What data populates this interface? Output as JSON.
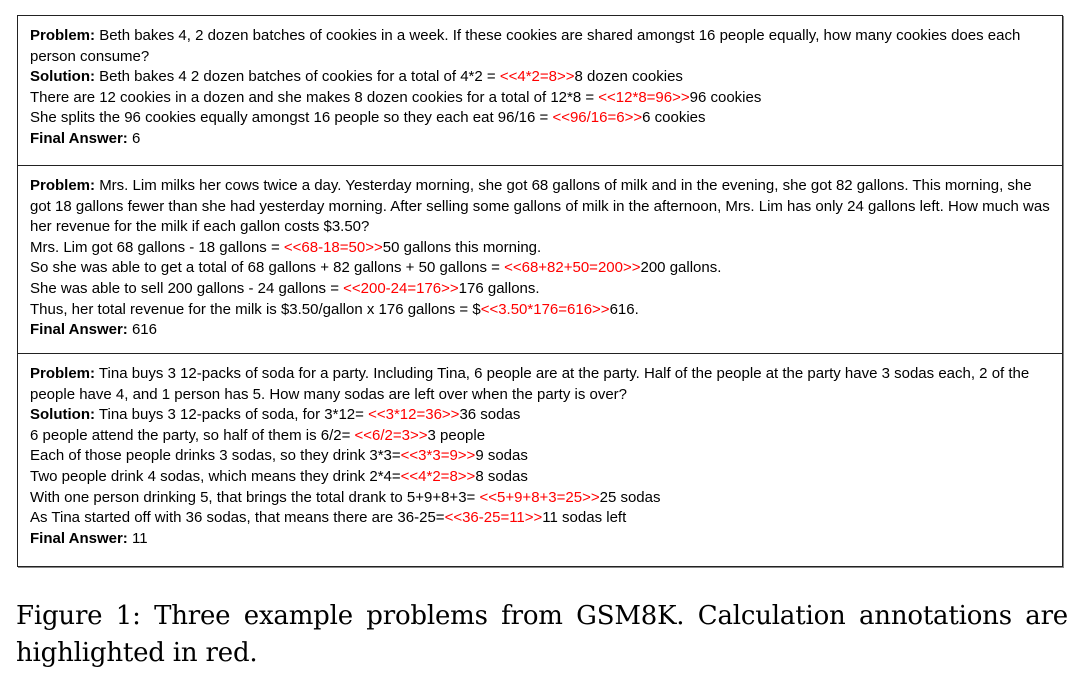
{
  "figure": {
    "examples": [
      {
        "problem_label": "Problem:",
        "problem_text": "Beth bakes 4, 2 dozen batches of cookies in a week.  If these cookies are shared amongst 16 people equally, how many cookies does each person consume?",
        "solution_label": "Solution:",
        "steps": [
          {
            "before": "Beth bakes 4 2 dozen batches of cookies for a total of 4*2 = ",
            "calc": "<<4*2=8>>",
            "after": "8 dozen cookies"
          },
          {
            "before": "There are 12 cookies in a dozen and she makes 8 dozen cookies for a total of 12*8 = ",
            "calc": "<<12*8=96>>",
            "after": "96 cookies"
          },
          {
            "before": "She splits the 96 cookies equally amongst 16 people so they each eat 96/16 = ",
            "calc": "<<96/16=6>>",
            "after": "6 cookies"
          }
        ],
        "final_label": "Final Answer:",
        "final_value": "6"
      },
      {
        "problem_label": "Problem:",
        "problem_text": "Mrs. Lim milks her cows twice a day. Yesterday morning, she got 68 gallons of milk and in the evening, she got 82 gallons. This morning, she got 18 gallons fewer than she had yesterday morning. After selling some gallons of milk in the afternoon, Mrs. Lim has only 24 gallons left. How much was her revenue for the milk if each gallon costs $3.50?",
        "steps": [
          {
            "before": "Mrs. Lim got 68 gallons - 18 gallons = ",
            "calc": "<<68-18=50>>",
            "after": "50 gallons this morning."
          },
          {
            "before": "So she was able to get a total of 68 gallons + 82 gallons + 50 gallons = ",
            "calc": "<<68+82+50=200>>",
            "after": "200 gallons."
          },
          {
            "before": "She was able to sell 200 gallons - 24 gallons = ",
            "calc": "<<200-24=176>>",
            "after": "176 gallons."
          },
          {
            "before": "Thus, her total revenue for the milk is $3.50/gallon x 176 gallons = $",
            "calc": "<<3.50*176=616>>",
            "after": "616."
          }
        ],
        "final_label": "Final Answer:",
        "final_value": "616"
      },
      {
        "problem_label": "Problem:",
        "problem_text": "Tina buys 3 12-packs of soda for a party.  Including Tina, 6 people are at the party.  Half of the people at the party have 3 sodas each, 2 of the people have 4, and 1 person has 5.  How many sodas are left over when the party is over?",
        "solution_label": "Solution:",
        "steps": [
          {
            "before": "Tina buys 3 12-packs of soda, for 3*12= ",
            "calc": "<<3*12=36>>",
            "after": "36 sodas"
          },
          {
            "before": "6 people attend the party, so half of them is 6/2= ",
            "calc": "<<6/2=3>>",
            "after": "3 people"
          },
          {
            "before": "Each of those people drinks 3 sodas, so they drink 3*3=",
            "calc": "<<3*3=9>>",
            "after": "9 sodas"
          },
          {
            "before": "Two people drink 4 sodas, which means they drink 2*4=",
            "calc": "<<4*2=8>>",
            "after": "8 sodas"
          },
          {
            "before": "With one person drinking 5, that brings the total drank to 5+9+8+3= ",
            "calc": "<<5+9+8+3=25>>",
            "after": "25 sodas"
          },
          {
            "before": "As Tina started off with 36 sodas, that means there are 36-25=",
            "calc": "<<36-25=11>>",
            "after": "11 sodas left"
          }
        ],
        "final_label": "Final Answer:",
        "final_value": "11"
      }
    ],
    "calc_color": "#ff0000"
  },
  "caption": {
    "text": "Figure 1:  Three example problems from GSM8K. Calculation annotations are highlighted in red."
  }
}
